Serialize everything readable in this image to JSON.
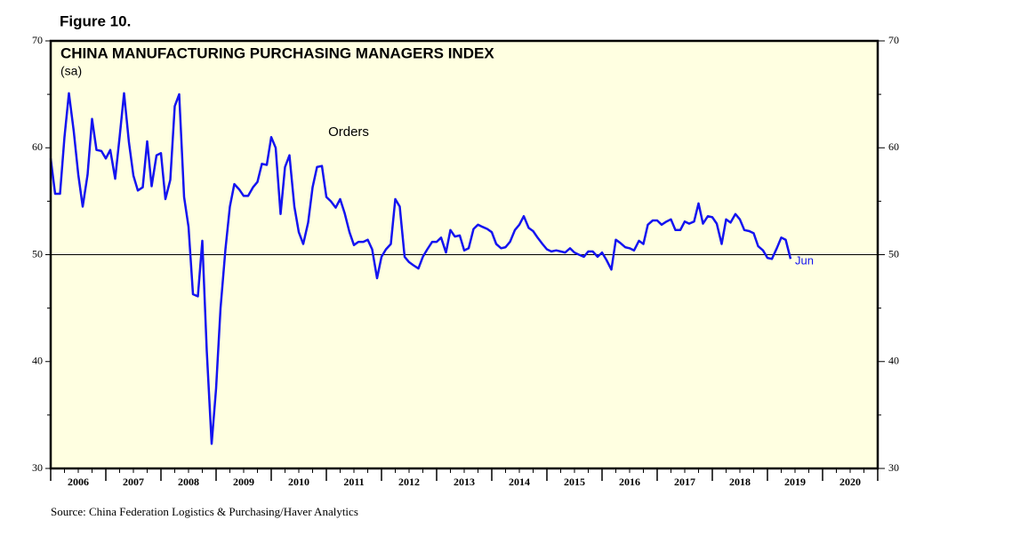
{
  "chart_data": {
    "type": "line",
    "figure_label": "Figure 10.",
    "title": "CHINA MANUFACTURING PURCHASING MANAGERS INDEX",
    "subtitle": "(sa)",
    "source": "Source: China Federation Logistics & Purchasing/Haver Analytics",
    "end_label": "Jun",
    "x": [
      2006,
      2006.08,
      2006.17,
      2006.25,
      2006.33,
      2006.42,
      2006.5,
      2006.58,
      2006.67,
      2006.75,
      2006.83,
      2006.92,
      2007,
      2007.08,
      2007.17,
      2007.25,
      2007.33,
      2007.42,
      2007.5,
      2007.58,
      2007.67,
      2007.75,
      2007.83,
      2007.92,
      2008,
      2008.08,
      2008.17,
      2008.25,
      2008.33,
      2008.42,
      2008.5,
      2008.58,
      2008.67,
      2008.75,
      2008.83,
      2008.92,
      2009,
      2009.08,
      2009.17,
      2009.25,
      2009.33,
      2009.42,
      2009.5,
      2009.58,
      2009.67,
      2009.75,
      2009.83,
      2009.92,
      2010,
      2010.08,
      2010.17,
      2010.25,
      2010.33,
      2010.42,
      2010.5,
      2010.58,
      2010.67,
      2010.75,
      2010.83,
      2010.92,
      2011,
      2011.08,
      2011.17,
      2011.25,
      2011.33,
      2011.42,
      2011.5,
      2011.58,
      2011.67,
      2011.75,
      2011.83,
      2011.92,
      2012,
      2012.08,
      2012.17,
      2012.25,
      2012.33,
      2012.42,
      2012.5,
      2012.58,
      2012.67,
      2012.75,
      2012.83,
      2012.92,
      2013,
      2013.08,
      2013.17,
      2013.25,
      2013.33,
      2013.42,
      2013.5,
      2013.58,
      2013.67,
      2013.75,
      2013.83,
      2013.92,
      2014,
      2014.08,
      2014.17,
      2014.25,
      2014.33,
      2014.42,
      2014.5,
      2014.58,
      2014.67,
      2014.75,
      2014.83,
      2014.92,
      2015,
      2015.08,
      2015.17,
      2015.25,
      2015.33,
      2015.42,
      2015.5,
      2015.58,
      2015.67,
      2015.75,
      2015.83,
      2015.92,
      2016,
      2016.08,
      2016.17,
      2016.25,
      2016.33,
      2016.42,
      2016.5,
      2016.58,
      2016.67,
      2016.75,
      2016.83,
      2016.92,
      2017,
      2017.08,
      2017.17,
      2017.25,
      2017.33,
      2017.42,
      2017.5,
      2017.58,
      2017.67,
      2017.75,
      2017.83,
      2017.92,
      2018,
      2018.08,
      2018.17,
      2018.25,
      2018.33,
      2018.42,
      2018.5,
      2018.58,
      2018.67,
      2018.75,
      2018.83,
      2018.92,
      2019,
      2019.08,
      2019.17,
      2019.25,
      2019.33,
      2019.42
    ],
    "series": [
      {
        "name": "Orders",
        "color": "#1414f0",
        "values": [
          59.0,
          55.7,
          55.7,
          61.0,
          65.1,
          61.5,
          57.5,
          54.5,
          57.5,
          62.7,
          59.8,
          59.7,
          59.0,
          59.8,
          57.1,
          61.0,
          65.1,
          60.5,
          57.4,
          56.0,
          56.3,
          60.6,
          56.4,
          59.3,
          59.5,
          55.2,
          57.0,
          63.9,
          65.0,
          55.4,
          52.6,
          46.3,
          46.1,
          51.3,
          41.0,
          32.3,
          37.5,
          45.0,
          50.5,
          54.5,
          56.6,
          56.1,
          55.5,
          55.5,
          56.3,
          56.8,
          58.5,
          58.4,
          61.0,
          60.0,
          53.8,
          58.2,
          59.3,
          54.5,
          52.1,
          51.0,
          53.0,
          56.3,
          58.2,
          58.3,
          55.4,
          55.0,
          54.4,
          55.2,
          53.9,
          52.1,
          50.9,
          51.2,
          51.2,
          51.4,
          50.5,
          47.8,
          49.8,
          50.5,
          51.0,
          55.2,
          54.5,
          49.8,
          49.3,
          49.0,
          48.7,
          49.8,
          50.5,
          51.2,
          51.2,
          51.6,
          50.2,
          52.3,
          51.7,
          51.8,
          50.4,
          50.6,
          52.4,
          52.8,
          52.6,
          52.4,
          52.1,
          51.0,
          50.6,
          50.7,
          51.2,
          52.3,
          52.8,
          53.6,
          52.5,
          52.2,
          51.6,
          51.0,
          50.5,
          50.3,
          50.4,
          50.3,
          50.2,
          50.6,
          50.2,
          50.0,
          49.8,
          50.3,
          50.3,
          49.8,
          50.2,
          49.5,
          48.6,
          51.4,
          51.1,
          50.7,
          50.6,
          50.4,
          51.3,
          51.0,
          52.8,
          53.2,
          53.2,
          52.8,
          53.1,
          53.3,
          52.3,
          52.3,
          53.1,
          52.9,
          53.1,
          54.8,
          52.9,
          53.6,
          53.5,
          52.9,
          51.0,
          53.3,
          53.0,
          53.8,
          53.3,
          52.3,
          52.2,
          52.0,
          50.8,
          50.4,
          49.7,
          49.6,
          50.6,
          51.6,
          51.4,
          49.6
        ]
      }
    ],
    "xlim": [
      2006,
      2021
    ],
    "xticks": [
      {
        "value": 2006.5,
        "label": "2006"
      },
      {
        "value": 2007.5,
        "label": "2007"
      },
      {
        "value": 2008.5,
        "label": "2008"
      },
      {
        "value": 2009.5,
        "label": "2009"
      },
      {
        "value": 2010.5,
        "label": "2010"
      },
      {
        "value": 2011.5,
        "label": "2011"
      },
      {
        "value": 2012.5,
        "label": "2012"
      },
      {
        "value": 2013.5,
        "label": "2013"
      },
      {
        "value": 2014.5,
        "label": "2014"
      },
      {
        "value": 2015.5,
        "label": "2015"
      },
      {
        "value": 2016.5,
        "label": "2016"
      },
      {
        "value": 2017.5,
        "label": "2017"
      },
      {
        "value": 2018.5,
        "label": "2018"
      },
      {
        "value": 2019.5,
        "label": "2019"
      },
      {
        "value": 2020.5,
        "label": "2020"
      }
    ],
    "ylim": [
      30,
      70
    ],
    "yticks": [
      30,
      40,
      50,
      60,
      70
    ],
    "yminorticks": [
      35,
      45,
      55,
      65
    ],
    "y2lim": [
      30,
      70
    ],
    "y2ticks": [
      30,
      40,
      50,
      60,
      70
    ],
    "hline": 50,
    "background": "#ffffe1"
  }
}
